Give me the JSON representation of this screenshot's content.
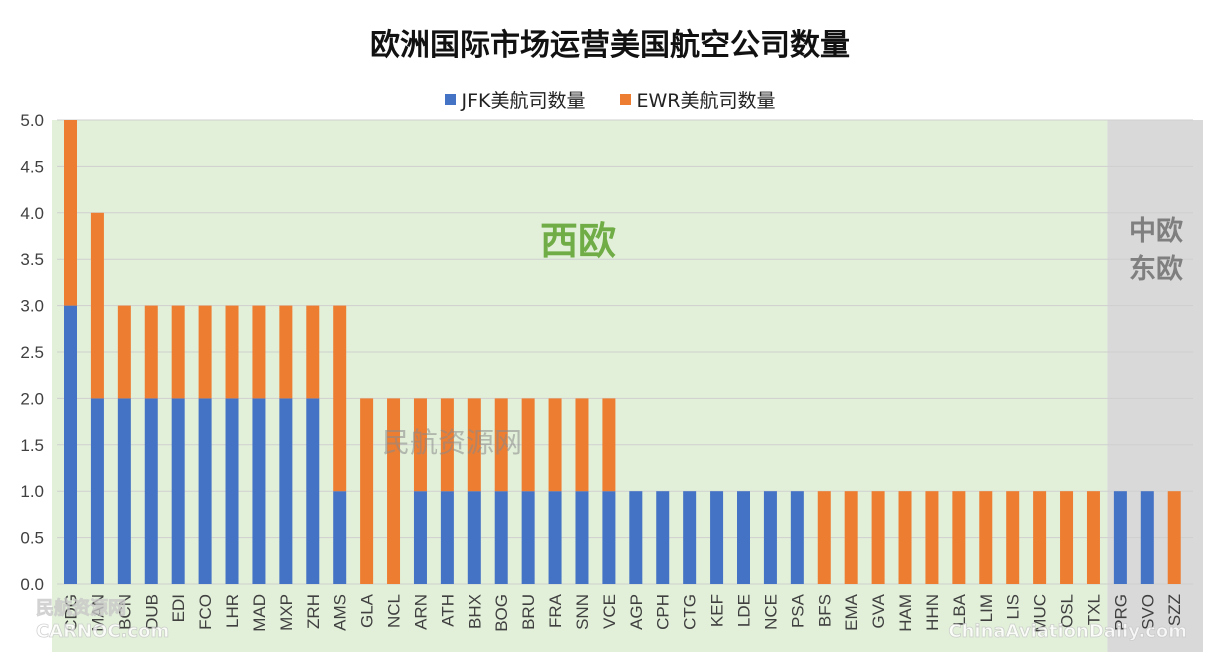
{
  "chart_data": {
    "type": "bar",
    "stacked": true,
    "title": "欧洲国际市场运营美国航空公司数量",
    "ylim": [
      0,
      5.0
    ],
    "yticks": [
      "0.0",
      "0.5",
      "1.0",
      "1.5",
      "2.0",
      "2.5",
      "3.0",
      "3.5",
      "4.0",
      "4.5",
      "5.0"
    ],
    "grid": true,
    "legend_position": "top-center",
    "categories": [
      "CDG",
      "MAN",
      "BCN",
      "DUB",
      "EDI",
      "FCO",
      "LHR",
      "MAD",
      "MXP",
      "ZRH",
      "AMS",
      "GLA",
      "NCL",
      "ARN",
      "ATH",
      "BHX",
      "BOG",
      "BRU",
      "FRA",
      "SNN",
      "VCE",
      "AGP",
      "CPH",
      "CTG",
      "KEF",
      "LDE",
      "NCE",
      "PSA",
      "BFS",
      "EMA",
      "GVA",
      "HAM",
      "HHN",
      "LBA",
      "LIM",
      "LIS",
      "MUC",
      "OSL",
      "TXL",
      "PRG",
      "SVO",
      "SZZ"
    ],
    "series": [
      {
        "name": "JFK美航司数量",
        "color": "#4472C4",
        "values": [
          3,
          2,
          2,
          2,
          2,
          2,
          2,
          2,
          2,
          2,
          1,
          0,
          0,
          1,
          1,
          1,
          1,
          1,
          1,
          1,
          1,
          1,
          1,
          1,
          1,
          1,
          1,
          1,
          0,
          0,
          0,
          0,
          0,
          0,
          0,
          0,
          0,
          0,
          0,
          1,
          1,
          0
        ]
      },
      {
        "name": "EWR美航司数量",
        "color": "#ED7D31",
        "values": [
          2,
          2,
          1,
          1,
          1,
          1,
          1,
          1,
          1,
          1,
          2,
          2,
          2,
          1,
          1,
          1,
          1,
          1,
          1,
          1,
          1,
          0,
          0,
          0,
          0,
          0,
          0,
          0,
          1,
          1,
          1,
          1,
          1,
          1,
          1,
          1,
          1,
          1,
          1,
          0,
          0,
          1
        ]
      }
    ],
    "regions": [
      {
        "label": "西欧",
        "from": "CDG",
        "to": "TXL",
        "color": "#E2F0D9",
        "label_color": "#70AD47"
      },
      {
        "label_lines": [
          "中欧",
          "东欧"
        ],
        "from": "PRG",
        "to": "SZZ",
        "color": "#D9D9D9",
        "label_color": "#7F7F7F"
      }
    ]
  },
  "watermarks": {
    "center": "民航资源网",
    "bottom_left_cn": "民航资源网",
    "bottom_left": "CARNOC.com",
    "bottom_right": "ChinaAviationDaily.com"
  }
}
